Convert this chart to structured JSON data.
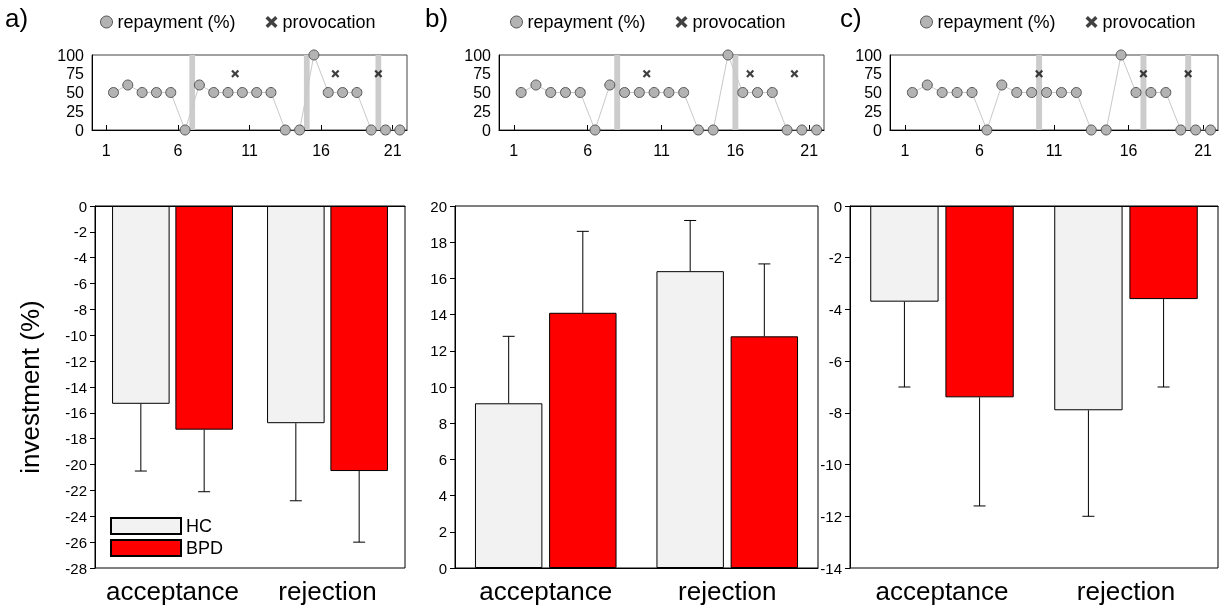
{
  "chart_data": [
    {
      "type": "line",
      "title": "a)",
      "legend": "top",
      "x": [
        1.5,
        2.5,
        3.5,
        4.5,
        5.5,
        6.5,
        7.5,
        8.5,
        9.5,
        10.5,
        11.5,
        12.5,
        13.5,
        14.5,
        15.5,
        16.5,
        17.5,
        18.5,
        19.5,
        20.5,
        21.5
      ],
      "xlim": [
        0,
        22
      ],
      "xticks": [
        1,
        6,
        11,
        16,
        21
      ],
      "ylim": [
        0,
        100
      ],
      "yticks": [
        0,
        25,
        50,
        75,
        100
      ],
      "series": [
        {
          "name": "repayment (%)",
          "color": "#b3b3b3",
          "marker": "circle",
          "values": [
            50,
            60,
            50,
            50,
            50,
            0,
            60,
            50,
            50,
            50,
            50,
            50,
            0,
            0,
            100,
            50,
            50,
            50,
            0,
            0,
            0
          ]
        },
        {
          "name": "provocation",
          "type": "scatter",
          "marker": "cross",
          "color": "#111111",
          "x": [
            10,
            17,
            20
          ],
          "values": [
            75,
            75,
            75
          ]
        }
      ],
      "bands": [
        {
          "axis": "x",
          "from": 6.8,
          "to": 7.2,
          "color": "#cccccc"
        },
        {
          "axis": "x",
          "from": 14.8,
          "to": 15.2,
          "color": "#cccccc"
        },
        {
          "axis": "x",
          "from": 19.8,
          "to": 20.2,
          "color": "#cccccc"
        }
      ]
    },
    {
      "type": "line",
      "title": "b)",
      "legend": "top",
      "x": [
        1.5,
        2.5,
        3.5,
        4.5,
        5.5,
        6.5,
        7.5,
        8.5,
        9.5,
        10.5,
        11.5,
        12.5,
        13.5,
        14.5,
        15.5,
        16.5,
        17.5,
        18.5,
        19.5,
        20.5,
        21.5
      ],
      "xlim": [
        0,
        22
      ],
      "xticks": [
        1,
        6,
        11,
        16,
        21
      ],
      "ylim": [
        0,
        100
      ],
      "yticks": [
        0,
        25,
        50,
        75,
        100
      ],
      "series": [
        {
          "name": "repayment (%)",
          "color": "#b3b3b3",
          "marker": "circle",
          "values": [
            50,
            60,
            50,
            50,
            50,
            0,
            60,
            50,
            50,
            50,
            50,
            50,
            0,
            0,
            100,
            50,
            50,
            50,
            0,
            0,
            0
          ]
        },
        {
          "name": "provocation",
          "type": "scatter",
          "marker": "cross",
          "color": "#111111",
          "x": [
            10,
            17,
            20
          ],
          "values": [
            75,
            75,
            75
          ]
        }
      ],
      "bands": [
        {
          "axis": "x",
          "from": 7.8,
          "to": 8.2,
          "color": "#cccccc"
        },
        {
          "axis": "x",
          "from": 15.8,
          "to": 16.2,
          "color": "#cccccc"
        }
      ]
    },
    {
      "type": "line",
      "title": "c)",
      "legend": "top",
      "x": [
        1.5,
        2.5,
        3.5,
        4.5,
        5.5,
        6.5,
        7.5,
        8.5,
        9.5,
        10.5,
        11.5,
        12.5,
        13.5,
        14.5,
        15.5,
        16.5,
        17.5,
        18.5,
        19.5,
        20.5,
        21.5
      ],
      "xlim": [
        0,
        22
      ],
      "xticks": [
        1,
        6,
        11,
        16,
        21
      ],
      "ylim": [
        0,
        100
      ],
      "yticks": [
        0,
        25,
        50,
        75,
        100
      ],
      "series": [
        {
          "name": "repayment (%)",
          "color": "#b3b3b3",
          "marker": "circle",
          "values": [
            50,
            60,
            50,
            50,
            50,
            0,
            60,
            50,
            50,
            50,
            50,
            50,
            0,
            0,
            100,
            50,
            50,
            50,
            0,
            0,
            0
          ]
        },
        {
          "name": "provocation",
          "type": "scatter",
          "marker": "cross",
          "color": "#111111",
          "x": [
            10,
            17,
            20
          ],
          "values": [
            75,
            75,
            75
          ]
        }
      ],
      "bands": [
        {
          "axis": "x",
          "from": 9.8,
          "to": 10.2,
          "color": "#cccccc"
        },
        {
          "axis": "x",
          "from": 16.8,
          "to": 17.2,
          "color": "#cccccc"
        },
        {
          "axis": "x",
          "from": 19.8,
          "to": 20.2,
          "color": "#cccccc"
        }
      ]
    },
    {
      "type": "bar",
      "ylabel": "investment (%)",
      "legend": "bottom left",
      "categories": [
        "acceptance",
        "rejection"
      ],
      "ylim": [
        -28,
        0
      ],
      "yticks": [
        -28,
        -26,
        -24,
        -22,
        -20,
        -18,
        -16,
        -14,
        -12,
        -10,
        -8,
        -6,
        -4,
        -2,
        0
      ],
      "series": [
        {
          "name": "HC",
          "color": "#f2f2f2",
          "values": [
            -15.3,
            -16.8
          ],
          "errors": [
            [
              -20.5,
              -15.3
            ],
            [
              -22.8,
              -16.8
            ]
          ]
        },
        {
          "name": "BPD",
          "color": "#ff0000",
          "values": [
            -17.3,
            -20.5
          ],
          "errors": [
            [
              -22.1,
              -17.3
            ],
            [
              -26.0,
              -20.5
            ]
          ]
        }
      ]
    },
    {
      "type": "bar",
      "categories": [
        "acceptance",
        "rejection"
      ],
      "ylim": [
        0,
        20
      ],
      "yticks": [
        0,
        2,
        4,
        6,
        8,
        10,
        12,
        14,
        16,
        18,
        20
      ],
      "series": [
        {
          "color": "#f2f2f2",
          "values": [
            9.1,
            16.4
          ],
          "errors": [
            [
              9.1,
              12.8
            ],
            [
              16.4,
              19.2
            ]
          ]
        },
        {
          "color": "#ff0000",
          "values": [
            14.1,
            12.8
          ],
          "errors": [
            [
              14.1,
              18.6
            ],
            [
              12.8,
              16.8
            ]
          ]
        }
      ]
    },
    {
      "type": "bar",
      "categories": [
        "acceptance",
        "rejection"
      ],
      "ylim": [
        -14,
        0
      ],
      "yticks": [
        -14,
        -12,
        -10,
        -8,
        -6,
        -4,
        -2,
        0
      ],
      "series": [
        {
          "color": "#f2f2f2",
          "values": [
            -3.7,
            -7.9
          ],
          "errors": [
            [
              -7.0,
              -3.7
            ],
            [
              -12.0,
              -7.9
            ]
          ]
        },
        {
          "color": "#ff0000",
          "values": [
            -7.4,
            -3.6
          ],
          "errors": [
            [
              -11.6,
              -7.4
            ],
            [
              -7.0,
              -3.6
            ]
          ]
        }
      ]
    }
  ]
}
